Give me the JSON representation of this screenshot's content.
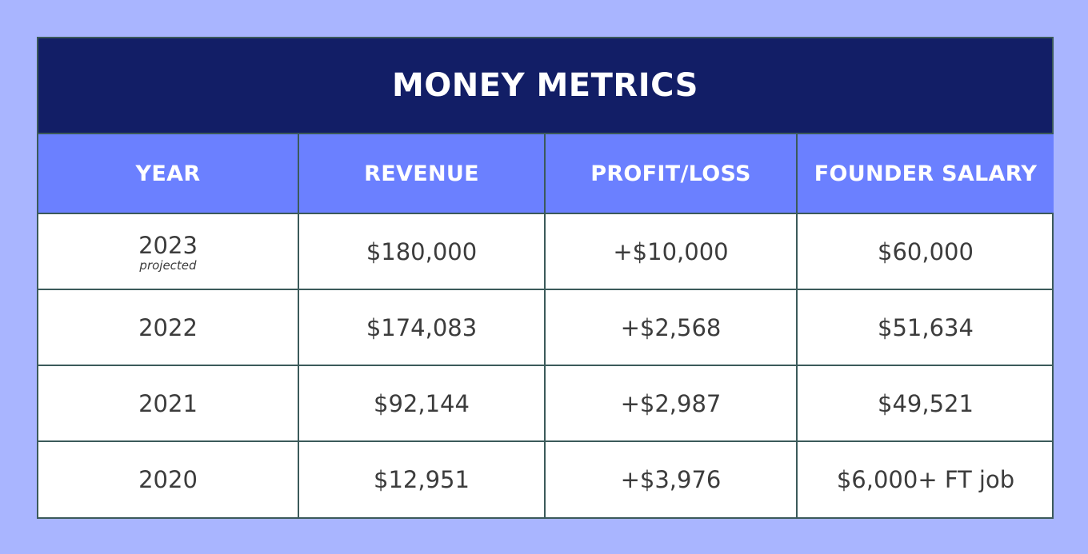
{
  "title": "MONEY METRICS",
  "columns": [
    "YEAR",
    "REVENUE",
    "PROFIT/LOSS",
    "FOUNDER SALARY"
  ],
  "rows": [
    {
      "year": "2023",
      "note": "projected",
      "revenue": "$180,000",
      "profit_loss": "+$10,000",
      "founder_salary": "$60,000"
    },
    {
      "year": "2022",
      "revenue": "$174,083",
      "profit_loss": "+$2,568",
      "founder_salary": "$51,634"
    },
    {
      "year": "2021",
      "revenue": "$92,144",
      "profit_loss": "+$2,987",
      "founder_salary": "$49,521"
    },
    {
      "year": "2020",
      "revenue": "$12,951",
      "profit_loss": "+$3,976",
      "founder_salary": "$6,000+ FT job"
    }
  ],
  "colors": {
    "page_background": "#a9b5ff",
    "title_background": "#121e66",
    "header_background": "#6b80ff",
    "border": "#3b5a5a",
    "cell_text": "#3c3c3c"
  }
}
